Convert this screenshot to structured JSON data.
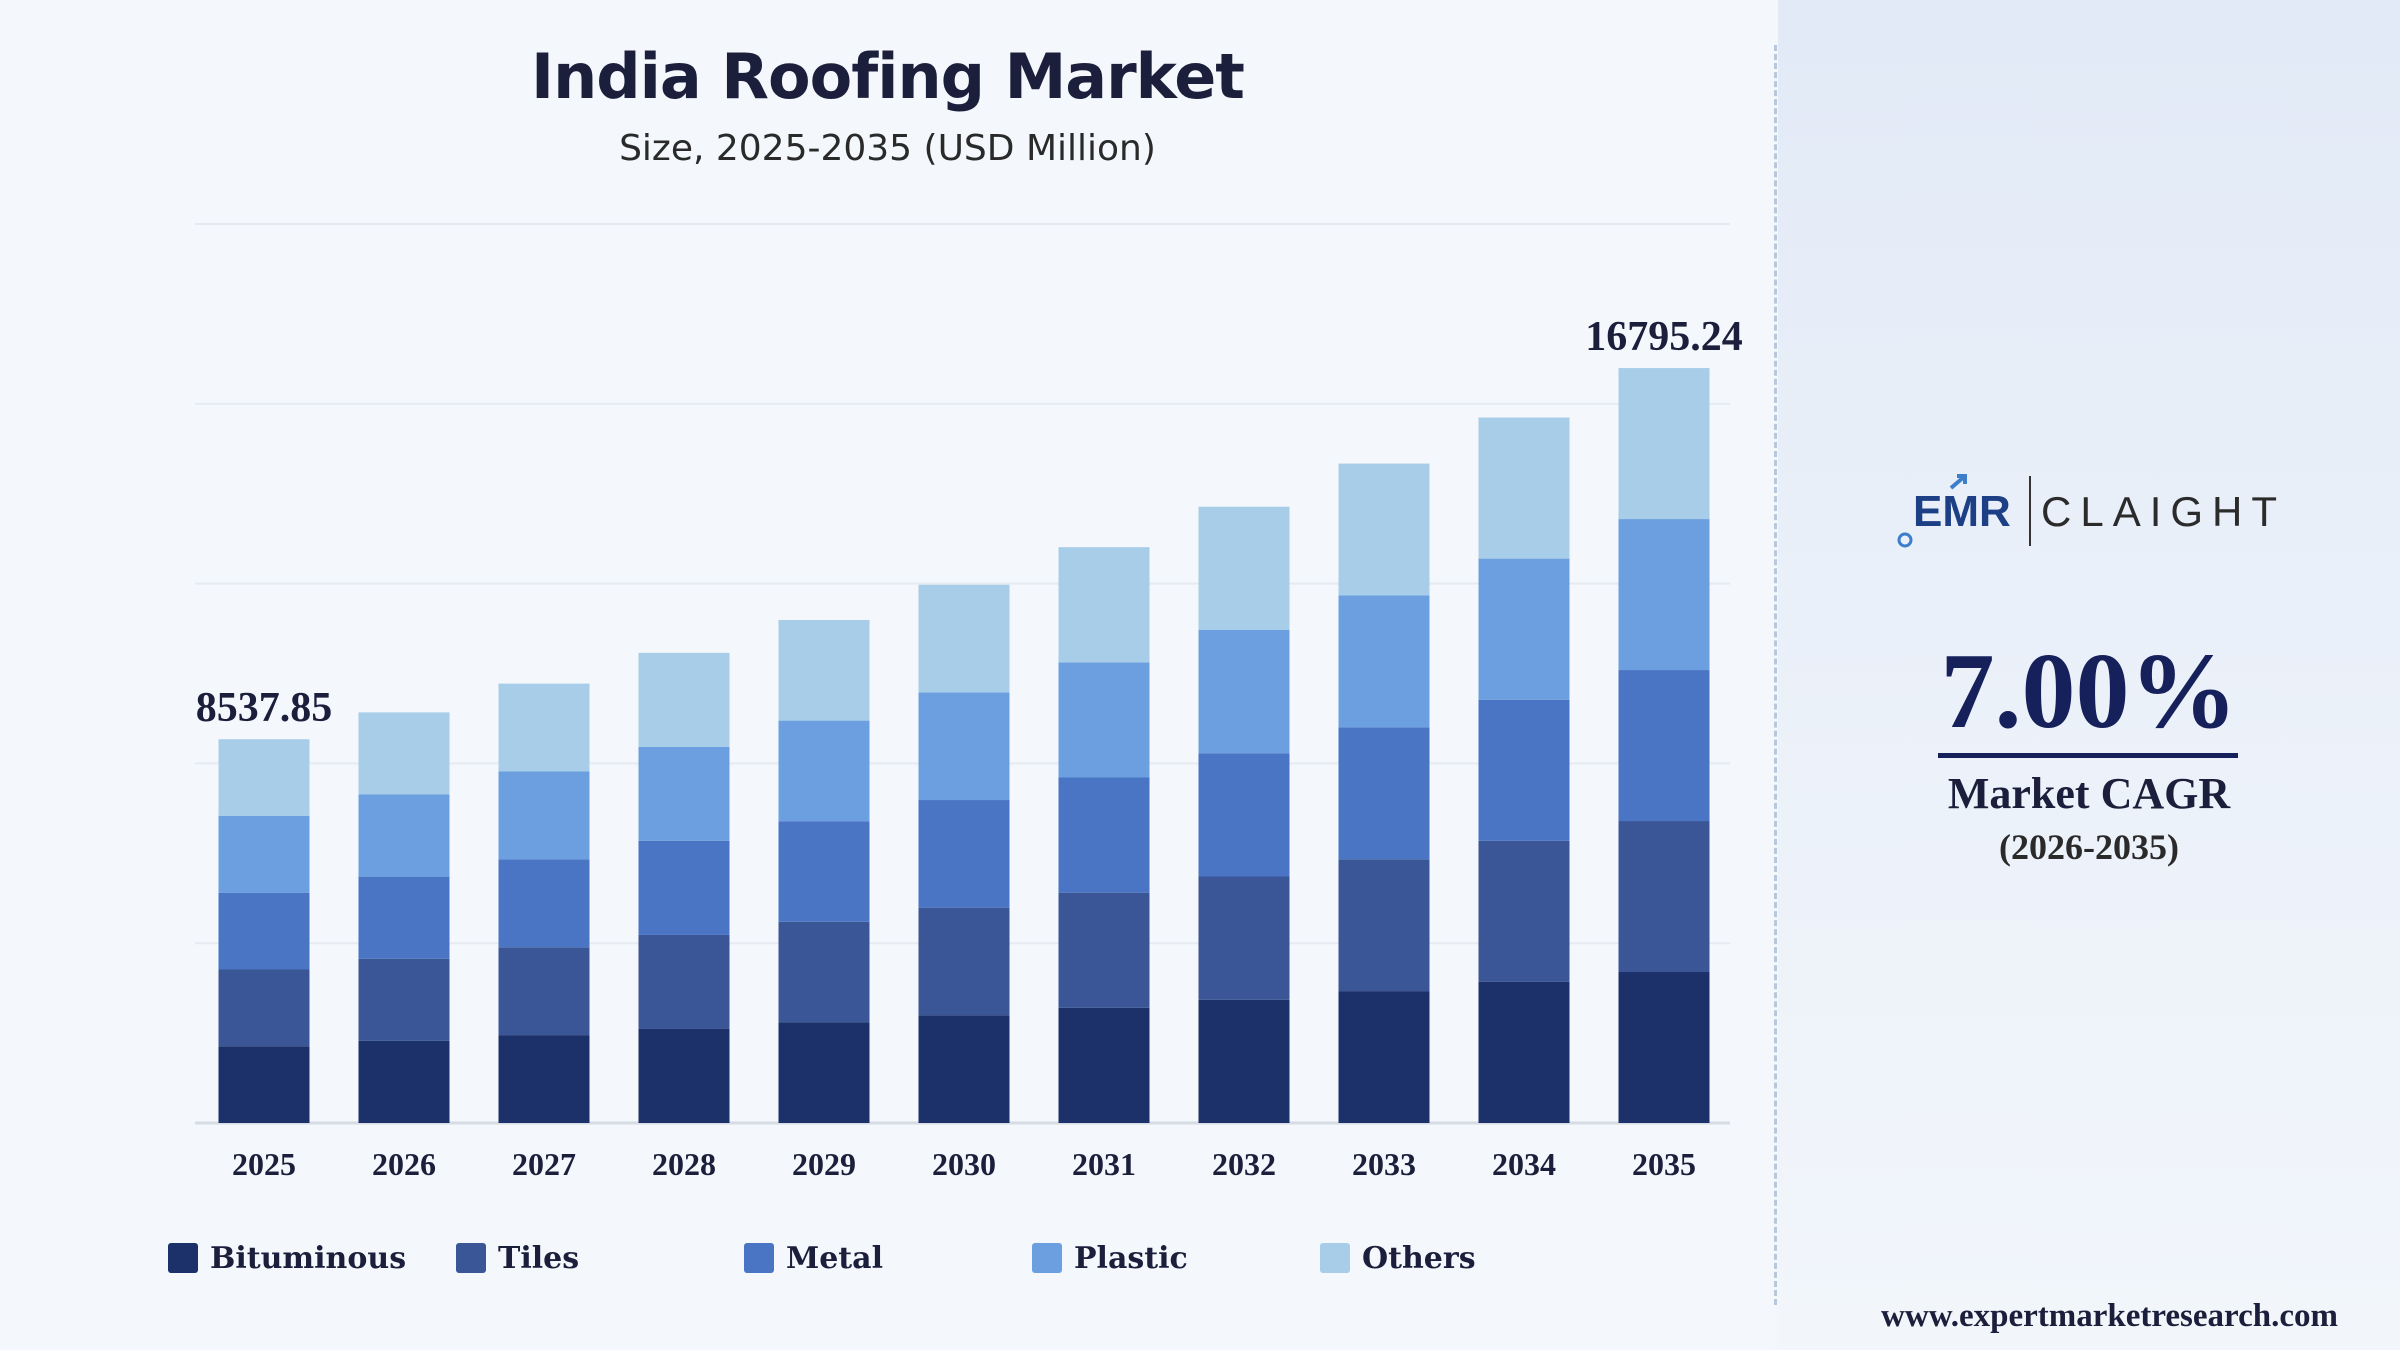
{
  "header": {
    "title": "India Roofing Market",
    "subtitle": "Size, 2025-2035 (USD Million)"
  },
  "chart_data": {
    "type": "bar",
    "stacked": true,
    "title": "India Roofing Market",
    "subtitle": "Size, 2025-2035 (USD Million)",
    "categories": [
      "2025",
      "2026",
      "2027",
      "2028",
      "2029",
      "2030",
      "2031",
      "2032",
      "2033",
      "2034",
      "2035"
    ],
    "series": [
      {
        "name": "Bituminous",
        "color": "#1c3069",
        "values": [
          1707.6,
          1827.0,
          1955.0,
          2092.0,
          2238.0,
          2395.0,
          2562.0,
          2742.0,
          2934.0,
          3139.0,
          3359.0
        ]
      },
      {
        "name": "Tiles",
        "color": "#3b5697",
        "values": [
          1707.6,
          1827.0,
          1955.0,
          2092.0,
          2238.0,
          2395.0,
          2562.0,
          2742.0,
          2934.0,
          3139.0,
          3359.0
        ]
      },
      {
        "name": "Metal",
        "color": "#4a74c4",
        "values": [
          1707.6,
          1827.0,
          1955.0,
          2092.0,
          2238.0,
          2395.0,
          2562.0,
          2742.0,
          2934.0,
          3139.0,
          3359.0
        ]
      },
      {
        "name": "Plastic",
        "color": "#6b9fdf",
        "values": [
          1707.6,
          1827.0,
          1955.0,
          2092.0,
          2238.0,
          2395.0,
          2562.0,
          2742.0,
          2934.0,
          3139.0,
          3359.0
        ]
      },
      {
        "name": "Others",
        "color": "#a7cde8",
        "values": [
          1707.6,
          1827.0,
          1955.0,
          2092.0,
          2238.0,
          2395.0,
          2562.0,
          2742.0,
          2934.0,
          3139.0,
          3359.0
        ]
      }
    ],
    "totals": [
      8537.85,
      9135,
      9775,
      10460,
      11190,
      11975,
      12810,
      13710,
      14670,
      15695,
      16795.24
    ],
    "data_labels": [
      {
        "category": "2025",
        "text": "8537.85"
      },
      {
        "category": "2035",
        "text": "16795.24"
      }
    ],
    "ylim": [
      0,
      20000
    ],
    "grid": true,
    "legend": "bottom"
  },
  "legend": {
    "items": [
      {
        "label": "Bituminous",
        "color": "#1c3069"
      },
      {
        "label": "Tiles",
        "color": "#3b5697"
      },
      {
        "label": "Metal",
        "color": "#4a74c4"
      },
      {
        "label": "Plastic",
        "color": "#6b9fdf"
      },
      {
        "label": "Others",
        "color": "#a7cde8"
      }
    ]
  },
  "sidebar": {
    "logo_left": "EMR",
    "logo_right": "CLAIGHT",
    "cagr_value": "7.00%",
    "cagr_label": "Market CAGR",
    "cagr_period": "(2026-2035)"
  },
  "footer": {
    "website": "www.expertmarketresearch.com"
  }
}
